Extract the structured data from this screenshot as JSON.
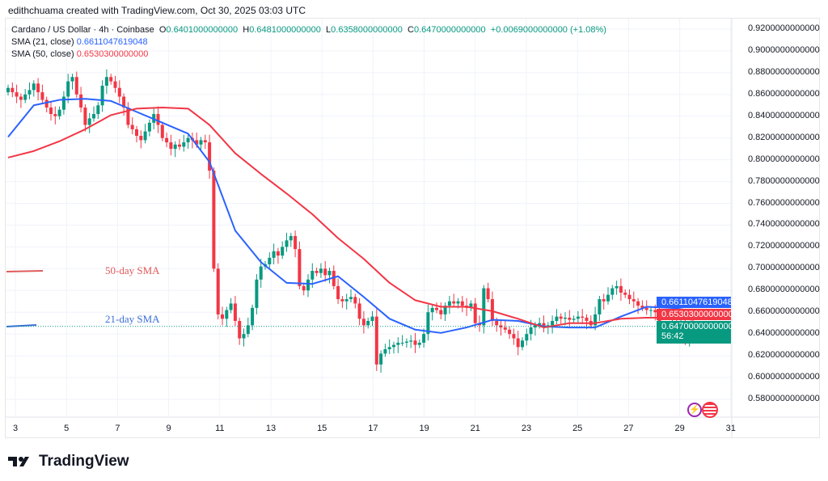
{
  "credit": "edithchuama created with TradingView.com, Oct 30, 2025 03:03 UTC",
  "legend": {
    "symbol": "Cardano / US Dollar · 4h · Coinbase",
    "o_label": "O",
    "o": "0.6401000000000",
    "h_label": "H",
    "h": "0.6481000000000",
    "l_label": "L",
    "l": "0.6358000000000",
    "c_label": "C",
    "c": "0.6470000000000",
    "change": "+0.0069000000000 (+1.08%)",
    "sma21_label": "SMA (21, close)",
    "sma21_value": "0.6611047619048",
    "sma50_label": "SMA (50, close)",
    "sma50_value": "0.6530300000000"
  },
  "price_tags": {
    "sma21": "0.6611047619048",
    "sma50": "0.6530300000000",
    "last": "0.6470000000000",
    "countdown": "56:42"
  },
  "annotations": {
    "sma50": "50-day SMA",
    "sma21": "21-day SMA"
  },
  "logo_text": "TradingView",
  "colors": {
    "up": "#089981",
    "down": "#f23645",
    "sma21": "#2962ff",
    "sma50": "#f23645"
  },
  "chart_data": {
    "type": "candlestick",
    "title": "Cardano / US Dollar · 4h · Coinbase",
    "x_ticks": [
      "3",
      "5",
      "7",
      "9",
      "11",
      "13",
      "15",
      "17",
      "19",
      "21",
      "23",
      "25",
      "27",
      "29",
      "31"
    ],
    "y_ticks": [
      "0.9200000000000",
      "0.9000000000000",
      "0.8800000000000",
      "0.8600000000000",
      "0.8400000000000",
      "0.8200000000000",
      "0.8000000000000",
      "0.7800000000000",
      "0.7600000000000",
      "0.7400000000000",
      "0.7200000000000",
      "0.7000000000000",
      "0.6800000000000",
      "0.6600000000000",
      "0.6400000000000",
      "0.6200000000000",
      "0.6000000000000",
      "0.5800000000000"
    ],
    "ylim": [
      0.575,
      0.925
    ],
    "grid": true,
    "closes": [
      0.866,
      0.862,
      0.858,
      0.855,
      0.86,
      0.864,
      0.87,
      0.862,
      0.855,
      0.848,
      0.842,
      0.84,
      0.846,
      0.858,
      0.872,
      0.876,
      0.86,
      0.848,
      0.832,
      0.838,
      0.842,
      0.85,
      0.868,
      0.876,
      0.872,
      0.866,
      0.858,
      0.848,
      0.832,
      0.828,
      0.822,
      0.818,
      0.826,
      0.834,
      0.842,
      0.832,
      0.82,
      0.816,
      0.81,
      0.814,
      0.812,
      0.816,
      0.82,
      0.818,
      0.814,
      0.818,
      0.816,
      0.79,
      0.7,
      0.658,
      0.654,
      0.662,
      0.668,
      0.652,
      0.636,
      0.64,
      0.648,
      0.664,
      0.69,
      0.702,
      0.704,
      0.71,
      0.716,
      0.712,
      0.72,
      0.726,
      0.73,
      0.718,
      0.684,
      0.68,
      0.69,
      0.698,
      0.696,
      0.7,
      0.694,
      0.698,
      0.684,
      0.672,
      0.67,
      0.672,
      0.674,
      0.668,
      0.654,
      0.648,
      0.652,
      0.656,
      0.612,
      0.622,
      0.626,
      0.628,
      0.63,
      0.632,
      0.632,
      0.633,
      0.634,
      0.63,
      0.632,
      0.64,
      0.66,
      0.664,
      0.662,
      0.658,
      0.666,
      0.67,
      0.668,
      0.67,
      0.666,
      0.664,
      0.668,
      0.65,
      0.648,
      0.682,
      0.672,
      0.652,
      0.648,
      0.646,
      0.644,
      0.64,
      0.636,
      0.628,
      0.634,
      0.64,
      0.646,
      0.648,
      0.65,
      0.646,
      0.648,
      0.652,
      0.656,
      0.654,
      0.655,
      0.653,
      0.654,
      0.656,
      0.655,
      0.652,
      0.648,
      0.658,
      0.672,
      0.67,
      0.676,
      0.682,
      0.684,
      0.678,
      0.676,
      0.672,
      0.67,
      0.666,
      0.664,
      0.662,
      0.662,
      0.66,
      0.648,
      0.644,
      0.646,
      0.65,
      0.642,
      0.65,
      0.636,
      0.6401,
      0.647
    ],
    "last_candle": {
      "open": 0.6401,
      "high": 0.6481,
      "low": 0.6358,
      "close": 0.647
    },
    "series": [
      {
        "name": "SMA (21, close)",
        "points": [
          [
            0,
            0.821
          ],
          [
            6,
            0.85
          ],
          [
            12,
            0.855
          ],
          [
            18,
            0.856
          ],
          [
            24,
            0.854
          ],
          [
            30,
            0.844
          ],
          [
            36,
            0.834
          ],
          [
            42,
            0.824
          ],
          [
            47,
            0.798
          ],
          [
            53,
            0.735
          ],
          [
            59,
            0.706
          ],
          [
            65,
            0.687
          ],
          [
            71,
            0.686
          ],
          [
            77,
            0.693
          ],
          [
            83,
            0.674
          ],
          [
            89,
            0.654
          ],
          [
            95,
            0.644
          ],
          [
            101,
            0.641
          ],
          [
            107,
            0.646
          ],
          [
            113,
            0.653
          ],
          [
            119,
            0.652
          ],
          [
            125,
            0.647
          ],
          [
            131,
            0.646
          ],
          [
            137,
            0.646
          ],
          [
            143,
            0.656
          ],
          [
            149,
            0.665
          ],
          [
            155,
            0.664
          ],
          [
            160,
            0.661
          ]
        ]
      },
      {
        "name": "SMA (50, close)",
        "points": [
          [
            0,
            0.802
          ],
          [
            6,
            0.808
          ],
          [
            12,
            0.817
          ],
          [
            18,
            0.828
          ],
          [
            24,
            0.841
          ],
          [
            30,
            0.847
          ],
          [
            36,
            0.848
          ],
          [
            42,
            0.847
          ],
          [
            47,
            0.832
          ],
          [
            53,
            0.806
          ],
          [
            59,
            0.787
          ],
          [
            65,
            0.769
          ],
          [
            71,
            0.75
          ],
          [
            77,
            0.728
          ],
          [
            83,
            0.709
          ],
          [
            89,
            0.687
          ],
          [
            95,
            0.671
          ],
          [
            101,
            0.665
          ],
          [
            107,
            0.665
          ],
          [
            113,
            0.661
          ],
          [
            119,
            0.654
          ],
          [
            125,
            0.646
          ],
          [
            131,
            0.65
          ],
          [
            137,
            0.65
          ],
          [
            143,
            0.654
          ],
          [
            149,
            0.655
          ],
          [
            155,
            0.655
          ],
          [
            160,
            0.653
          ]
        ]
      }
    ]
  }
}
